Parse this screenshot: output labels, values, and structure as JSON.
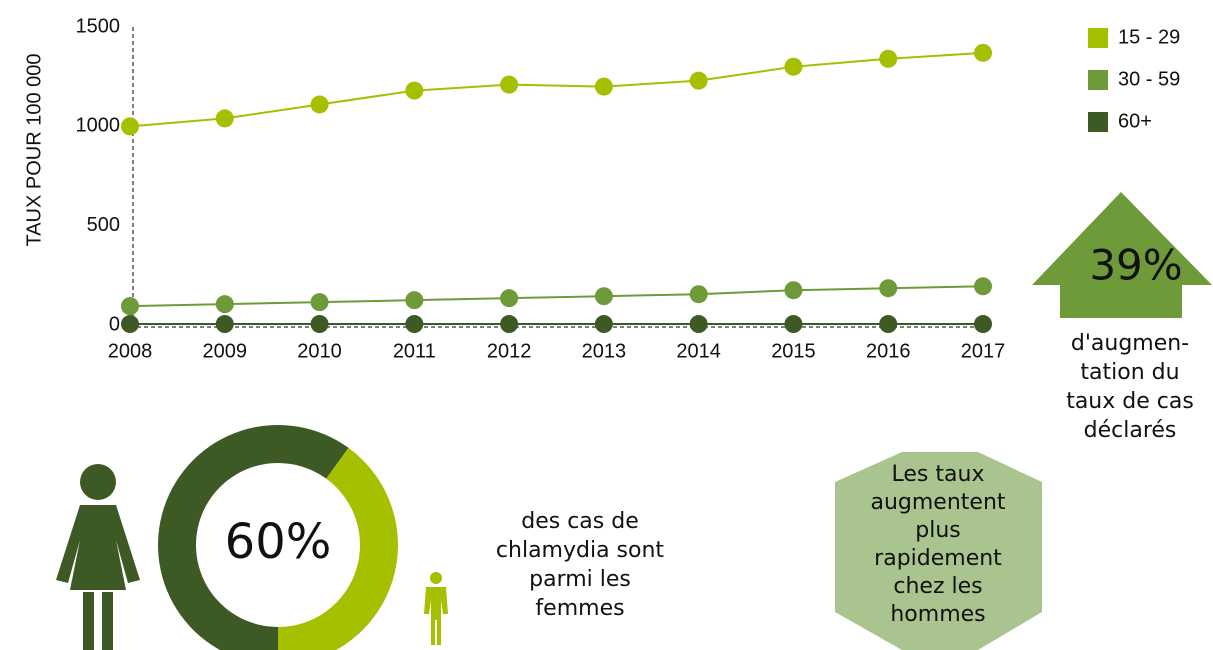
{
  "chart_data": [
    {
      "type": "line",
      "y_label": "TAUX POUR 100 000",
      "categories": [
        "2008",
        "2009",
        "2010",
        "2011",
        "2012",
        "2013",
        "2014",
        "2015",
        "2016",
        "2017"
      ],
      "series": [
        {
          "name": "15 - 29",
          "color": "#a6bf00",
          "values": [
            1000,
            1040,
            1110,
            1180,
            1210,
            1200,
            1230,
            1300,
            1340,
            1370
          ]
        },
        {
          "name": "30 - 59",
          "color": "#6f9a3a",
          "values": [
            95,
            105,
            115,
            125,
            135,
            145,
            155,
            175,
            185,
            195
          ]
        },
        {
          "name": "60+",
          "color": "#3d5a24",
          "values": [
            5,
            5,
            5,
            5,
            5,
            5,
            5,
            5,
            5,
            5
          ]
        }
      ],
      "ylim": [
        0,
        1500
      ],
      "yticks": [
        0,
        500,
        1000,
        1500
      ],
      "legend": "upper right"
    },
    {
      "type": "donut",
      "categories": [
        "femmes",
        "hommes"
      ],
      "values": [
        60,
        40
      ],
      "colors": [
        "#3d5a24",
        "#a6bf00"
      ],
      "center_label": "60%",
      "caption": [
        "des cas de",
        "chlamydia sont",
        "parmi les",
        "femmes"
      ]
    }
  ],
  "arrow_callout": {
    "value_label": "39%",
    "text": [
      "d'augmen-",
      "tation du",
      "taux de cas",
      "déclarés"
    ]
  },
  "hexagon_callout": {
    "text": [
      "Les taux",
      "augmentent",
      "plus",
      "rapidement",
      "chez les",
      "hommes"
    ]
  }
}
